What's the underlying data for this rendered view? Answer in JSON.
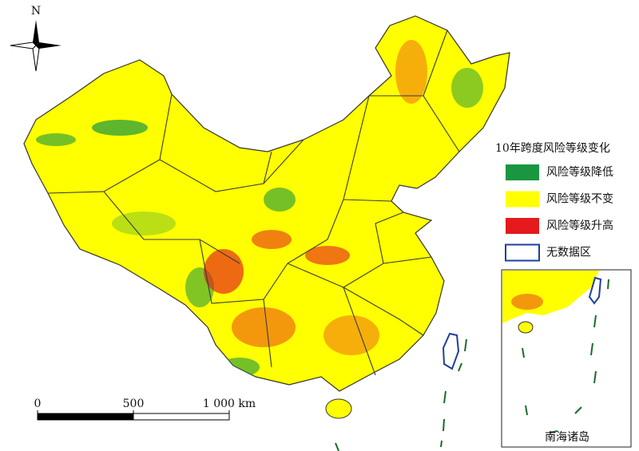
{
  "north_label": "N",
  "legend": {
    "title": "10年跨度风险等级变化",
    "items": [
      {
        "label": "风险等级降低",
        "color": "#1a9641"
      },
      {
        "label": "风险等级不变",
        "color": "#ffff00"
      },
      {
        "label": "风险等级升高",
        "color": "#e41a1c"
      },
      {
        "label": "无数据区",
        "color": "#ffffff",
        "stroke": "#1f3f9f"
      }
    ]
  },
  "scale_bar": {
    "ticks": [
      0,
      500,
      {
        "value": 1000,
        "label": "1 000 km"
      }
    ]
  },
  "inset_label": "南海诸岛"
}
